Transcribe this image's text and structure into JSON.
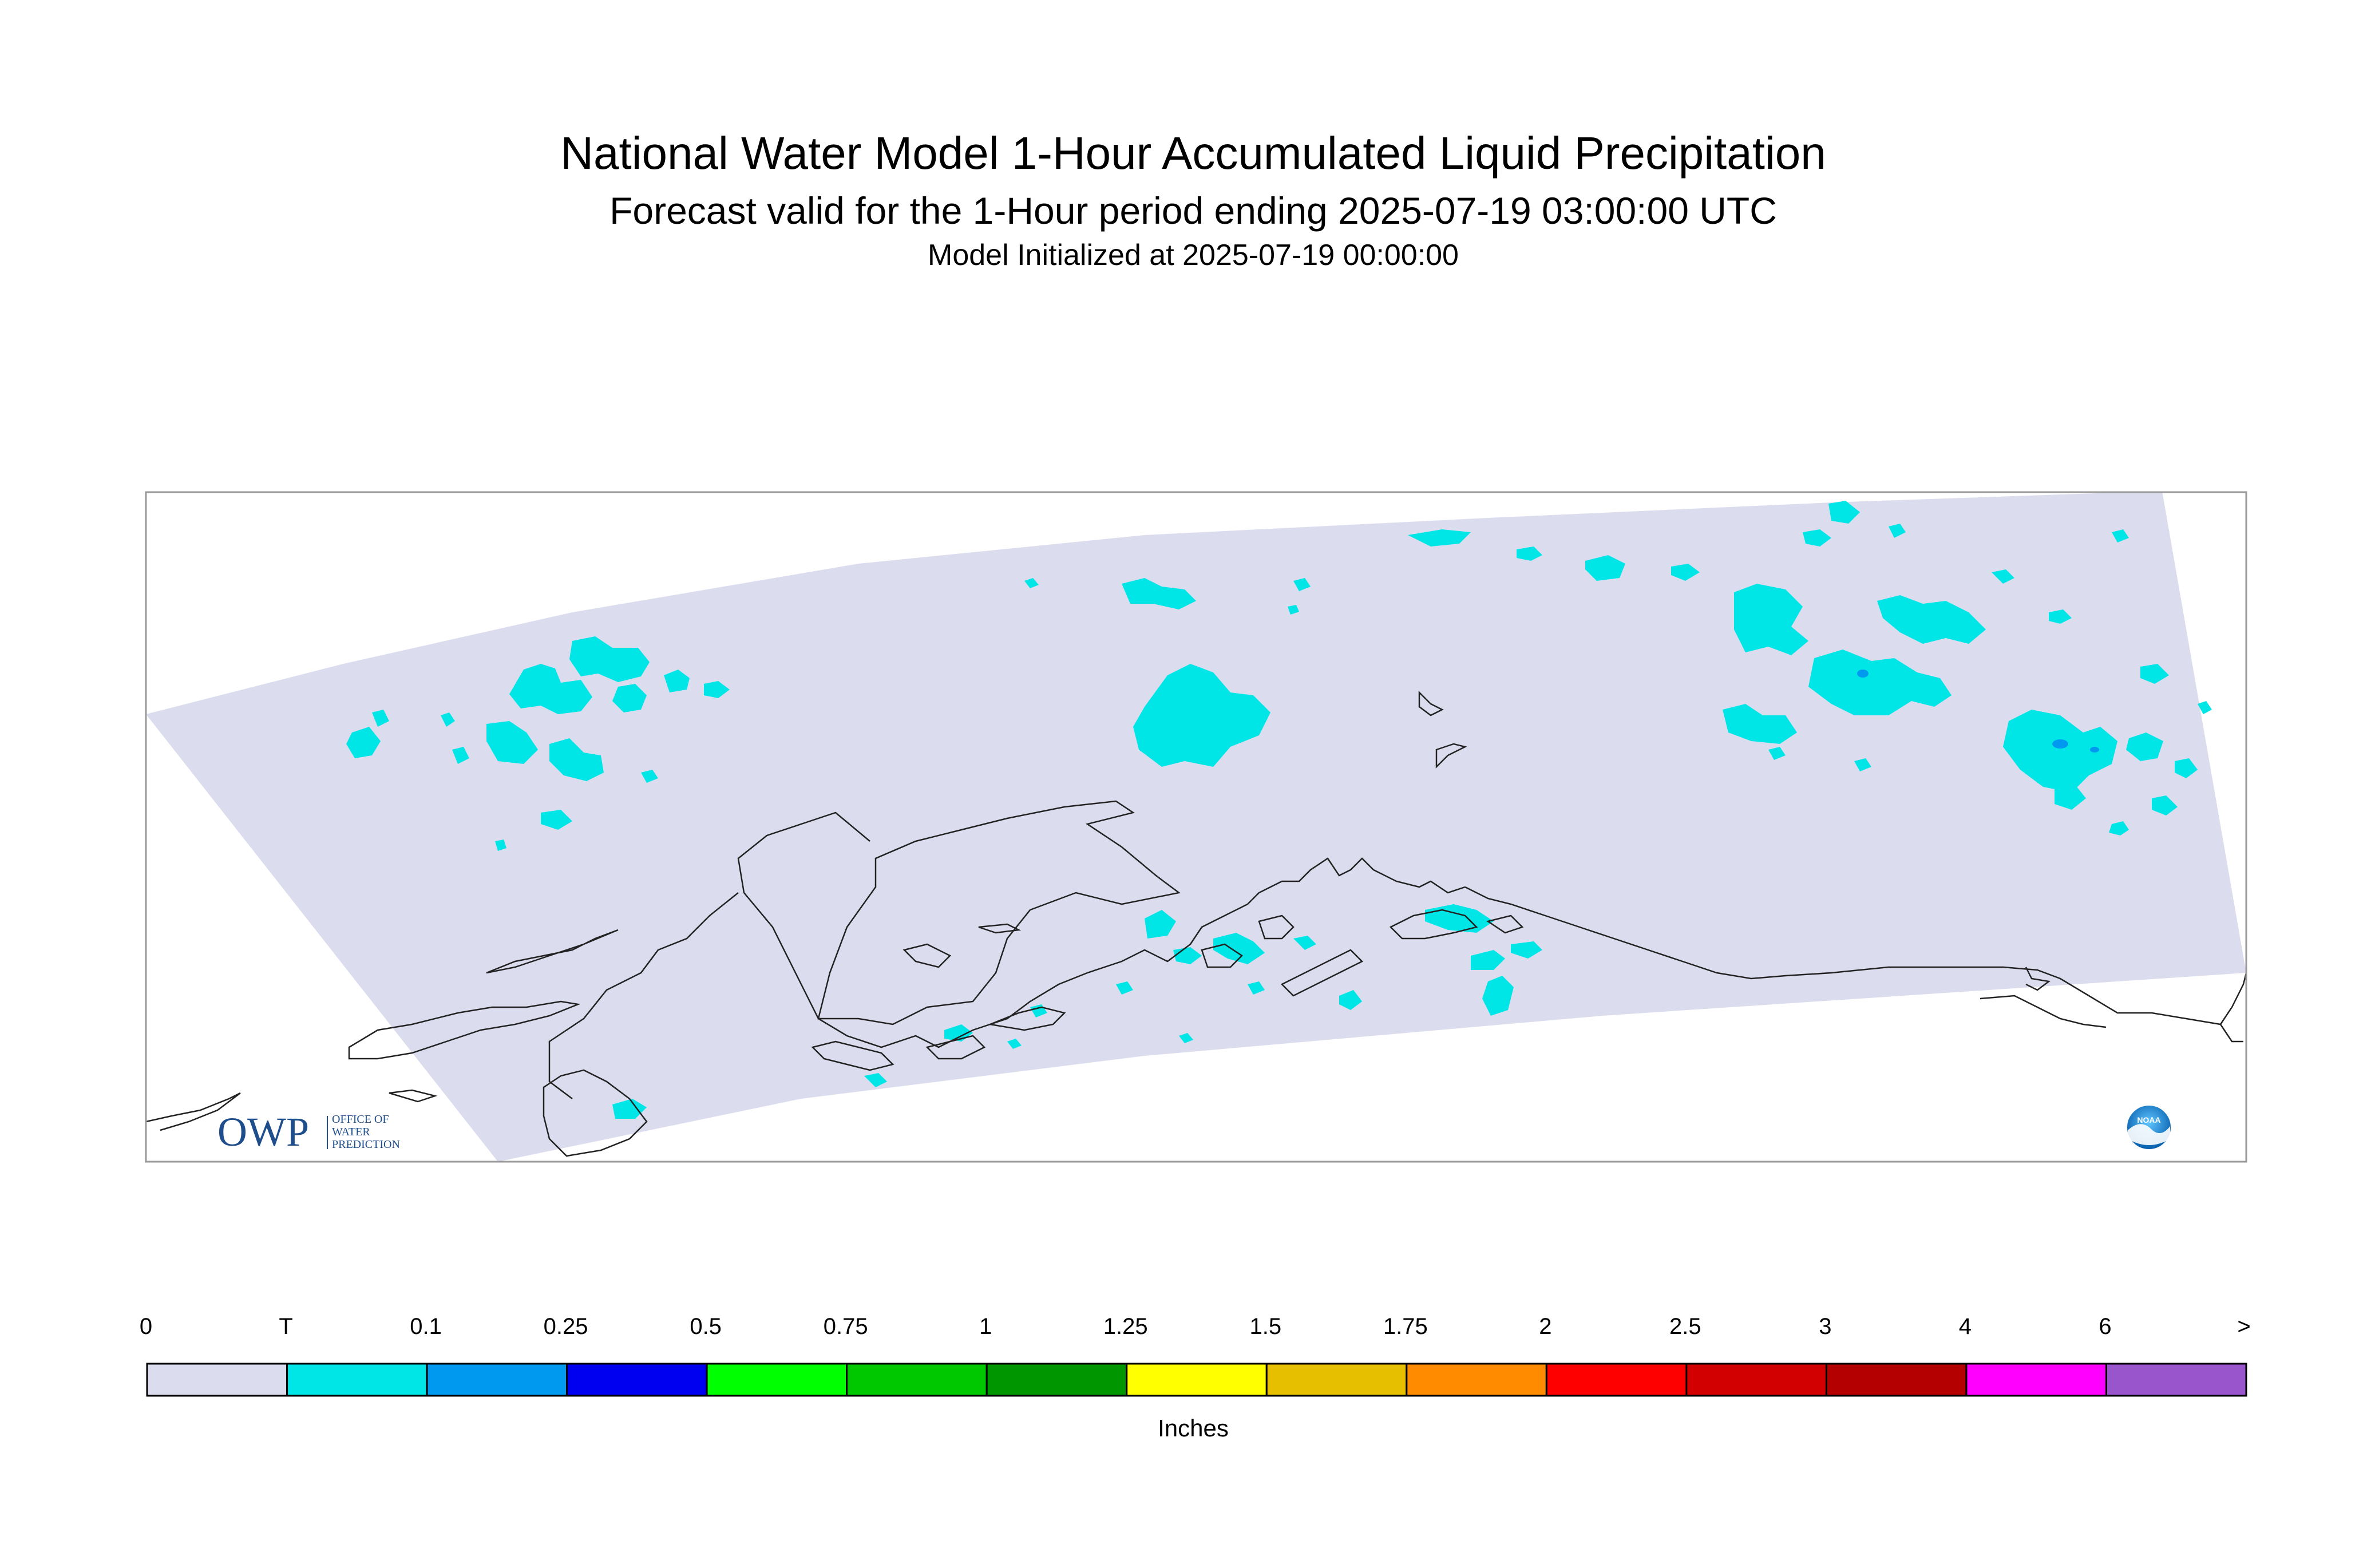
{
  "title": {
    "line1": "National Water Model 1-Hour Accumulated Liquid Precipitation",
    "line2": "Forecast valid for the 1-Hour period ending 2025-07-19 03:00:00 UTC",
    "line3": "Model Initialized at 2025-07-19 00:00:00"
  },
  "logos": {
    "owp_text": "OWP",
    "owp_subtext": [
      "OFFICE OF",
      "WATER",
      "PREDICTION"
    ],
    "noaa_text": "NOAA"
  },
  "legend": {
    "units": "Inches",
    "labels": [
      "0",
      "T",
      "0.1",
      "0.25",
      "0.5",
      "0.75",
      "1",
      "1.25",
      "1.5",
      "1.75",
      "2",
      "2.5",
      "3",
      "4",
      "6",
      ">"
    ],
    "colors": [
      "#dcdcef",
      "#00e6e6",
      "#0099f0",
      "#0000f0",
      "#00ff00",
      "#00c800",
      "#009600",
      "#ffff00",
      "#e6c000",
      "#ff8c00",
      "#ff0000",
      "#d20000",
      "#b40000",
      "#ff00ff",
      "#9955cc"
    ]
  },
  "colors": {
    "domain_fill": "#dcdcef",
    "precip_trace": "#00e6e6",
    "precip_light": "#0099f0",
    "coastline": "#222222",
    "frame": "#999999",
    "owp_blue": "#1f4e8c"
  }
}
